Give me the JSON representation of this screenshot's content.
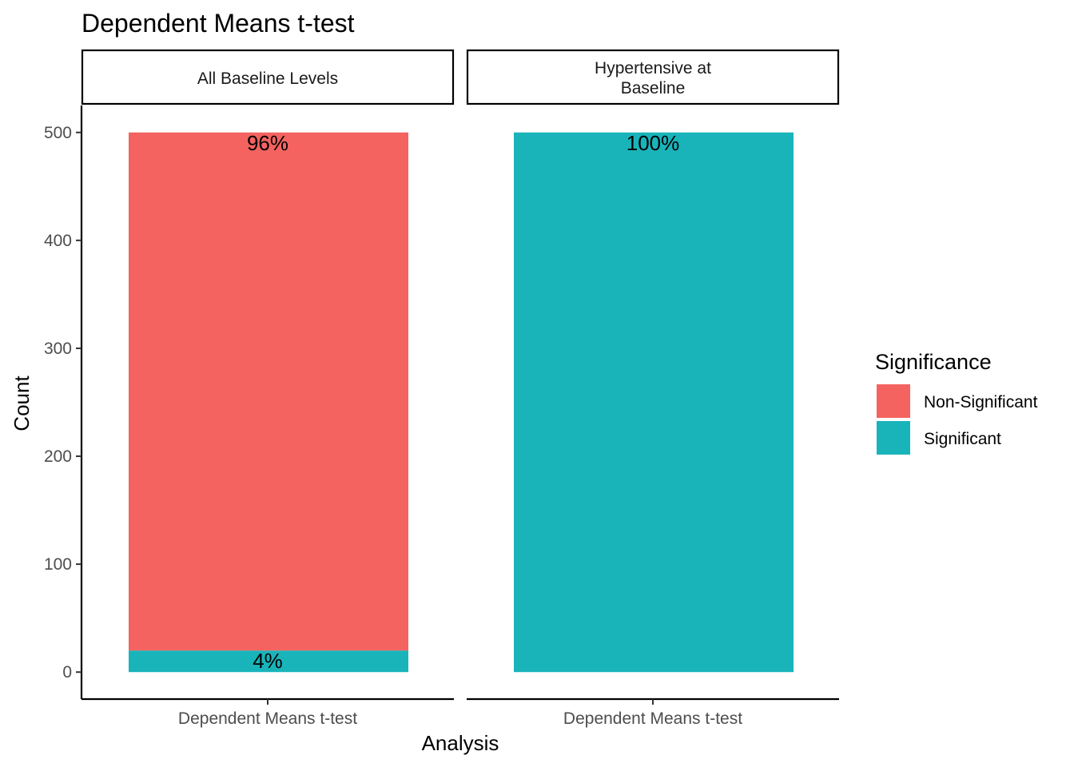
{
  "chart_data": {
    "type": "bar",
    "stacked": true,
    "title": "Dependent Means t-test",
    "xlabel": "Analysis",
    "ylabel": "Count",
    "ylim": [
      -25,
      525
    ],
    "yticks": [
      0,
      100,
      200,
      300,
      400,
      500
    ],
    "grid": false,
    "legend": {
      "title": "Significance",
      "position": "right",
      "entries": [
        {
          "label": "Non-Significant",
          "color": "#F46360"
        },
        {
          "label": "Significant",
          "color": "#19B4BA"
        }
      ]
    },
    "facets": [
      {
        "label_lines": [
          "All Baseline Levels"
        ],
        "category": "Dependent Means t-test",
        "segments": [
          {
            "series": "Significant",
            "value": 20,
            "color": "#19B4BA",
            "label": "4%"
          },
          {
            "series": "Non-Significant",
            "value": 480,
            "color": "#F46360",
            "label": "96%"
          }
        ]
      },
      {
        "label_lines": [
          "Hypertensive at",
          "Baseline"
        ],
        "category": "Dependent Means t-test",
        "segments": [
          {
            "series": "Significant",
            "value": 500,
            "color": "#19B4BA",
            "label": "100%"
          }
        ]
      }
    ]
  }
}
